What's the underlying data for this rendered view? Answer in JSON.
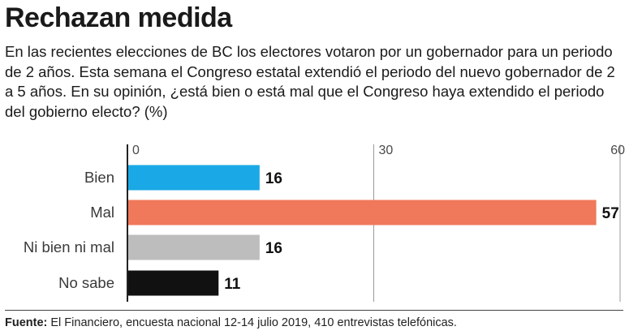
{
  "header": {
    "title": "Rechazan medida",
    "subtitle": "En las recientes elecciones de BC los electores votaron por un gobernador para un periodo de 2 años. Esta semana el Congreso estatal extendió el periodo del nuevo gobernador de 2 a 5 años. En su opinión, ¿está bien o está mal que el Congreso haya extendido el periodo del gobierno electo? (%)"
  },
  "chart_data": {
    "type": "bar",
    "orientation": "horizontal",
    "categories": [
      "Bien",
      "Mal",
      "Ni bien ni mal",
      "No sabe"
    ],
    "values": [
      16,
      57,
      16,
      11
    ],
    "colors": [
      "#1aa9e6",
      "#f0785b",
      "#bdbdbd",
      "#111111"
    ],
    "xlim": [
      0,
      60
    ],
    "xticks": [
      0,
      30,
      60
    ],
    "grid": true
  },
  "footer": {
    "source_label": "Fuente:",
    "source_text": "El Financiero, encuesta nacional 12-14 julio 2019, 410 entrevistas telefónicas."
  }
}
